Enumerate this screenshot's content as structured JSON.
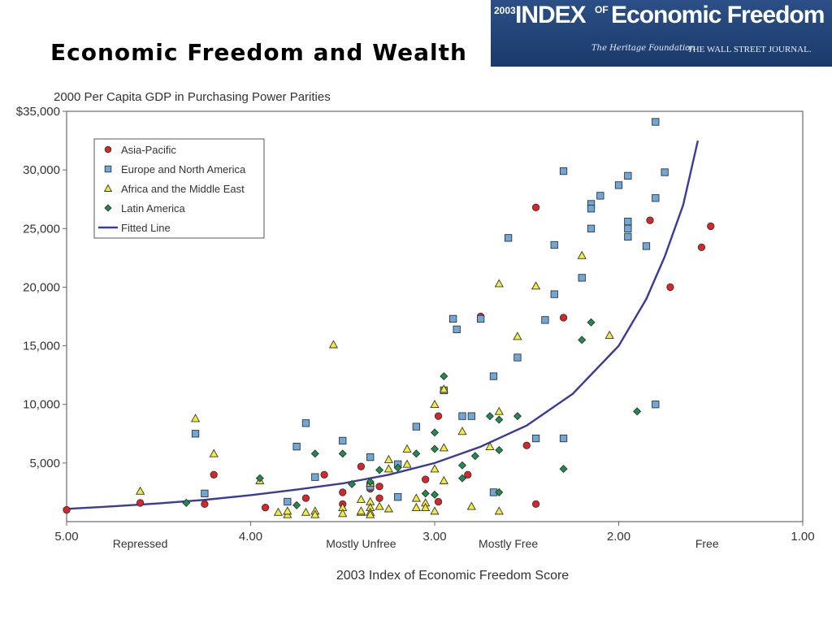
{
  "slide": {
    "title": "Economic Freedom and Wealth"
  },
  "logo": {
    "year": "2003",
    "index": "INDEX",
    "of": "OF",
    "name": "Economic Freedom",
    "heritage": "The Heritage Foundation",
    "wsj": "THE WALL STREET JOURNAL."
  },
  "colors": {
    "asia_pacific": "#d8262b",
    "europe_north_america": "#6fa8d8",
    "africa_middle_east": "#f3ec3b",
    "latin_america": "#1e8c4e",
    "fitted_line": "#3a3a9a"
  },
  "chart_data": {
    "type": "scatter",
    "title": "2000 Per Capita GDP in Purchasing Power Parities",
    "xlabel": "2003 Index of Economic Freedom Score",
    "ylabel": "",
    "xlim": [
      5.0,
      1.0
    ],
    "ylim": [
      0,
      35000
    ],
    "x_reversed": true,
    "grid": false,
    "legend_position": "top-left",
    "x_ticks": [
      5.0,
      4.0,
      3.0,
      2.0,
      1.0
    ],
    "x_tick_labels": [
      "5.00",
      "4.00",
      "3.00",
      "2.00",
      "1.00"
    ],
    "y_ticks": [
      5000,
      10000,
      15000,
      20000,
      25000,
      30000,
      35000
    ],
    "y_tick_labels": [
      "5,000",
      "10,000",
      "15,000",
      "20,000",
      "25,000",
      "30,000",
      "$35,000"
    ],
    "category_labels": [
      {
        "x": 4.6,
        "label": "Repressed"
      },
      {
        "x": 3.4,
        "label": "Mostly Unfree"
      },
      {
        "x": 2.6,
        "label": "Mostly Free"
      },
      {
        "x": 1.52,
        "label": "Free"
      }
    ],
    "series": [
      {
        "name": "Asia-Pacific",
        "marker": "circle",
        "points": [
          [
            5.0,
            1000
          ],
          [
            4.6,
            1600
          ],
          [
            4.2,
            4000
          ],
          [
            4.25,
            1500
          ],
          [
            3.92,
            1200
          ],
          [
            3.6,
            4000
          ],
          [
            3.7,
            2000
          ],
          [
            3.5,
            1500
          ],
          [
            3.5,
            2500
          ],
          [
            3.4,
            4700
          ],
          [
            3.35,
            3200
          ],
          [
            3.35,
            2800
          ],
          [
            3.3,
            3000
          ],
          [
            3.3,
            2000
          ],
          [
            3.05,
            3600
          ],
          [
            2.98,
            9000
          ],
          [
            2.98,
            1700
          ],
          [
            2.82,
            4000
          ],
          [
            2.75,
            17500
          ],
          [
            2.45,
            26800
          ],
          [
            2.5,
            6500
          ],
          [
            2.45,
            1500
          ],
          [
            2.3,
            17400
          ],
          [
            1.83,
            25700
          ],
          [
            1.72,
            20000
          ],
          [
            1.55,
            23400
          ],
          [
            1.5,
            25200
          ]
        ]
      },
      {
        "name": "Europe and North America",
        "marker": "square",
        "points": [
          [
            4.3,
            7500
          ],
          [
            4.25,
            2400
          ],
          [
            3.7,
            8400
          ],
          [
            3.65,
            3800
          ],
          [
            3.75,
            6400
          ],
          [
            3.8,
            1700
          ],
          [
            3.5,
            6900
          ],
          [
            3.35,
            3000
          ],
          [
            3.35,
            5500
          ],
          [
            3.2,
            4900
          ],
          [
            3.2,
            2100
          ],
          [
            3.1,
            8100
          ],
          [
            2.95,
            11200
          ],
          [
            2.9,
            17300
          ],
          [
            2.88,
            16400
          ],
          [
            2.85,
            9000
          ],
          [
            2.8,
            9000
          ],
          [
            2.75,
            17300
          ],
          [
            2.68,
            12400
          ],
          [
            2.68,
            2500
          ],
          [
            2.55,
            14000
          ],
          [
            2.6,
            24200
          ],
          [
            2.45,
            7100
          ],
          [
            2.4,
            17200
          ],
          [
            2.3,
            29900
          ],
          [
            2.35,
            19400
          ],
          [
            2.35,
            23600
          ],
          [
            2.3,
            7100
          ],
          [
            2.2,
            20800
          ],
          [
            2.15,
            27100
          ],
          [
            2.15,
            26700
          ],
          [
            2.15,
            25000
          ],
          [
            2.1,
            27800
          ],
          [
            2.0,
            28700
          ],
          [
            1.95,
            29500
          ],
          [
            1.95,
            25600
          ],
          [
            1.95,
            25000
          ],
          [
            1.95,
            24300
          ],
          [
            1.85,
            23500
          ],
          [
            1.8,
            34100
          ],
          [
            1.8,
            27600
          ],
          [
            1.8,
            10000
          ],
          [
            1.75,
            29800
          ]
        ]
      },
      {
        "name": "Africa and the Middle East",
        "marker": "triangle",
        "points": [
          [
            4.6,
            2600
          ],
          [
            4.3,
            8800
          ],
          [
            4.2,
            5800
          ],
          [
            3.95,
            3500
          ],
          [
            3.85,
            800
          ],
          [
            3.8,
            600
          ],
          [
            3.8,
            900
          ],
          [
            3.7,
            800
          ],
          [
            3.65,
            900
          ],
          [
            3.65,
            600
          ],
          [
            3.55,
            15100
          ],
          [
            3.5,
            1200
          ],
          [
            3.5,
            700
          ],
          [
            3.4,
            1900
          ],
          [
            3.4,
            800
          ],
          [
            3.4,
            900
          ],
          [
            3.35,
            1700
          ],
          [
            3.35,
            1200
          ],
          [
            3.35,
            800
          ],
          [
            3.35,
            600
          ],
          [
            3.35,
            3300
          ],
          [
            3.3,
            1300
          ],
          [
            3.25,
            1100
          ],
          [
            3.25,
            5300
          ],
          [
            3.25,
            4500
          ],
          [
            3.15,
            6200
          ],
          [
            3.15,
            4900
          ],
          [
            3.1,
            2000
          ],
          [
            3.1,
            1200
          ],
          [
            3.05,
            1600
          ],
          [
            3.05,
            1200
          ],
          [
            3.0,
            10000
          ],
          [
            3.0,
            4500
          ],
          [
            3.0,
            900
          ],
          [
            2.95,
            11300
          ],
          [
            2.95,
            6300
          ],
          [
            2.95,
            3500
          ],
          [
            2.85,
            7700
          ],
          [
            2.8,
            1300
          ],
          [
            2.7,
            6400
          ],
          [
            2.65,
            20300
          ],
          [
            2.65,
            9400
          ],
          [
            2.65,
            900
          ],
          [
            2.55,
            15800
          ],
          [
            2.45,
            20100
          ],
          [
            2.2,
            22700
          ],
          [
            2.05,
            15900
          ]
        ]
      },
      {
        "name": "Latin America",
        "marker": "diamond",
        "points": [
          [
            4.35,
            1600
          ],
          [
            3.95,
            3700
          ],
          [
            3.75,
            1400
          ],
          [
            3.65,
            5800
          ],
          [
            3.5,
            5800
          ],
          [
            3.45,
            3200
          ],
          [
            3.35,
            3400
          ],
          [
            3.3,
            4400
          ],
          [
            3.2,
            4600
          ],
          [
            3.1,
            5800
          ],
          [
            3.0,
            7600
          ],
          [
            3.0,
            6200
          ],
          [
            3.0,
            2300
          ],
          [
            3.05,
            2400
          ],
          [
            2.95,
            12400
          ],
          [
            2.85,
            4800
          ],
          [
            2.85,
            3700
          ],
          [
            2.78,
            5600
          ],
          [
            2.7,
            9000
          ],
          [
            2.65,
            8700
          ],
          [
            2.65,
            6100
          ],
          [
            2.65,
            2500
          ],
          [
            2.55,
            9000
          ],
          [
            2.3,
            4500
          ],
          [
            2.2,
            15500
          ],
          [
            2.15,
            17000
          ],
          [
            1.9,
            9400
          ]
        ]
      }
    ],
    "fitted_line": {
      "name": "Fitted Line",
      "points": [
        [
          5.0,
          1090
        ],
        [
          4.75,
          1300
        ],
        [
          4.5,
          1550
        ],
        [
          4.25,
          1860
        ],
        [
          4.0,
          2260
        ],
        [
          3.75,
          2730
        ],
        [
          3.5,
          3260
        ],
        [
          3.25,
          4000
        ],
        [
          3.0,
          5000
        ],
        [
          2.75,
          6400
        ],
        [
          2.5,
          8200
        ],
        [
          2.25,
          10900
        ],
        [
          2.0,
          15000
        ],
        [
          1.85,
          19000
        ],
        [
          1.75,
          22600
        ],
        [
          1.65,
          27000
        ],
        [
          1.57,
          32500
        ]
      ]
    }
  }
}
